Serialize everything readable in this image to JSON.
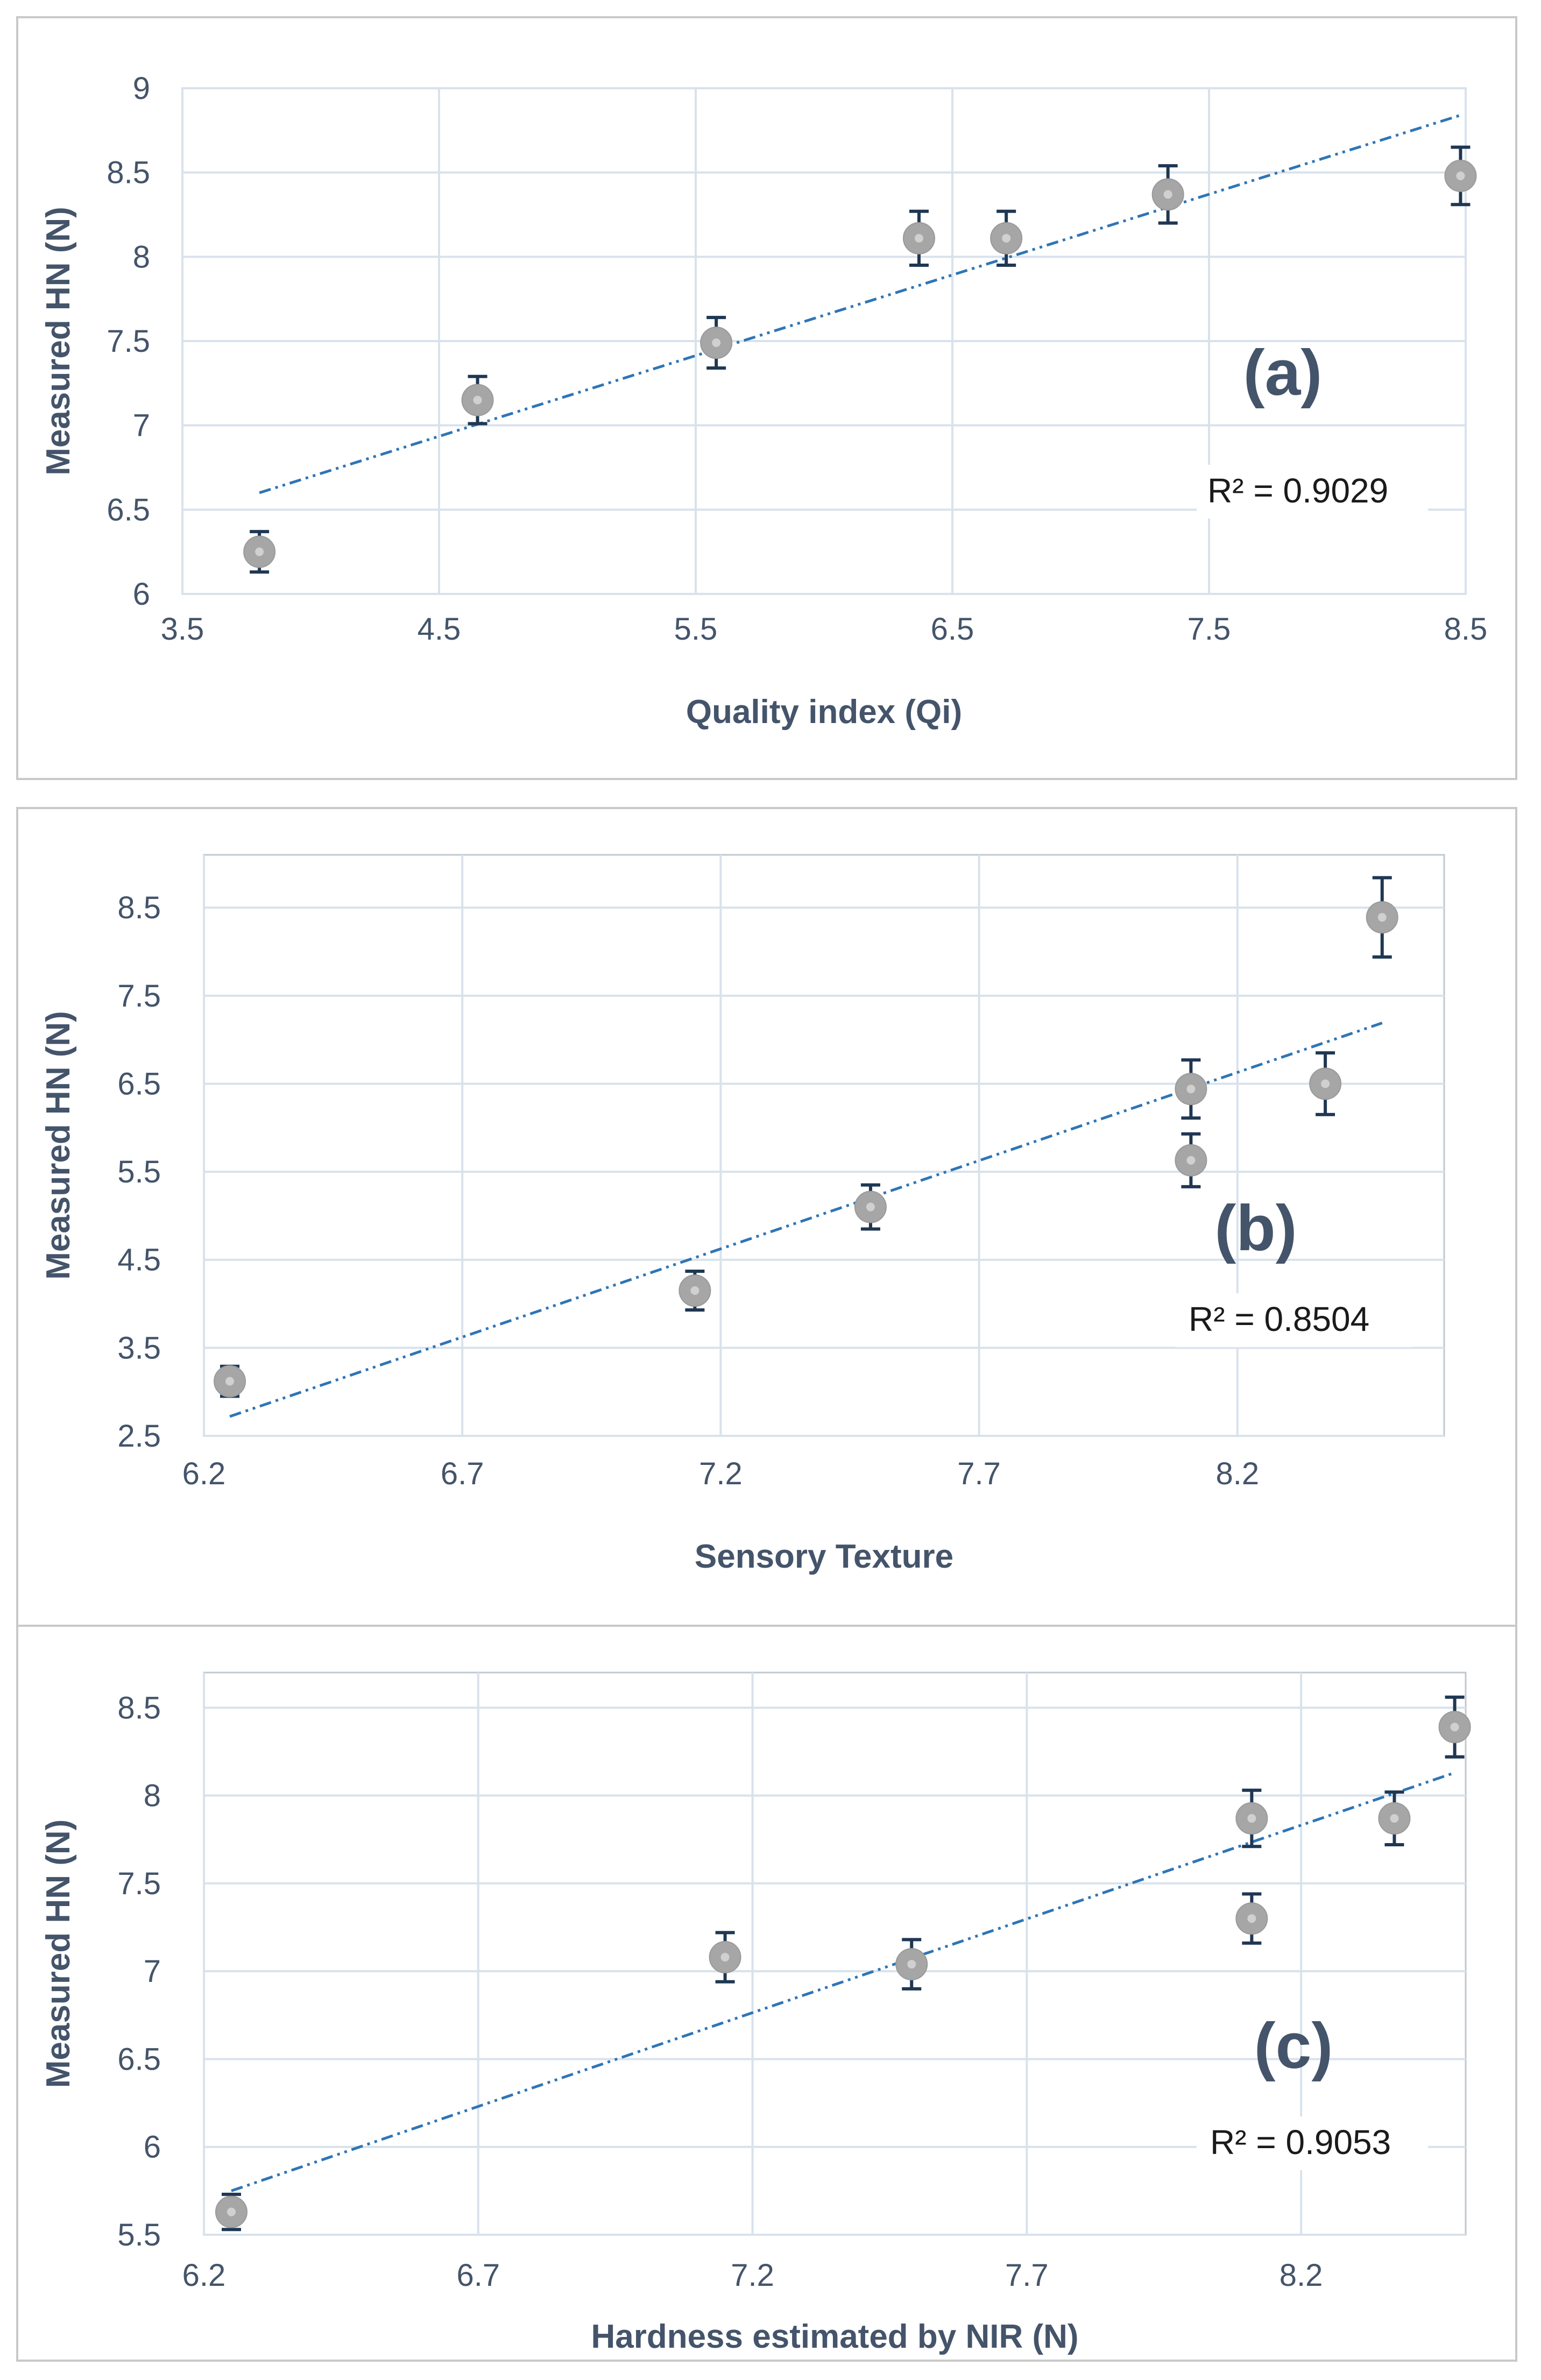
{
  "chart_data": [
    {
      "type": "scatter",
      "panel_label": "(a)",
      "xlabel": "Quality index (Qi)",
      "ylabel": "Measured HN (N)",
      "xlim": [
        3.5,
        8.5
      ],
      "ylim": [
        6,
        9
      ],
      "xticks": [
        3.5,
        4.5,
        5.5,
        6.5,
        7.5,
        8.5
      ],
      "yticks": [
        6,
        6.5,
        7,
        7.5,
        8,
        8.5,
        9
      ],
      "xtick_labels": [
        "3.5",
        "4.5",
        "5.5",
        "6.5",
        "7.5",
        "8.5"
      ],
      "ytick_labels": [
        "6",
        "6.5",
        "7",
        "7.5",
        "8",
        "8.5",
        "9"
      ],
      "x": [
        3.8,
        4.65,
        5.58,
        6.37,
        6.71,
        7.34,
        8.48
      ],
      "y": [
        6.25,
        7.15,
        7.49,
        8.11,
        8.11,
        8.37,
        8.48
      ],
      "error": [
        0.12,
        0.14,
        0.15,
        0.16,
        0.16,
        0.17,
        0.17
      ],
      "trendline": {
        "x": [
          3.8,
          8.48
        ],
        "y": [
          6.6,
          8.84
        ]
      },
      "r2_label": "R² = 0.9029",
      "grid": true
    },
    {
      "type": "scatter",
      "panel_label": "(b)",
      "xlabel": "Sensory Texture",
      "ylabel": "Measured HN (N)",
      "xlim": [
        6.2,
        8.6
      ],
      "ylim": [
        2.5,
        9.1
      ],
      "xticks": [
        6.2,
        6.7,
        7.2,
        7.7,
        8.2
      ],
      "yticks": [
        2.5,
        3.5,
        4.5,
        5.5,
        6.5,
        7.5,
        8.5
      ],
      "xtick_labels": [
        "6.2",
        "6.7",
        "7.2",
        "7.7",
        "8.2"
      ],
      "ytick_labels": [
        "2.5",
        "3.5",
        "4.5",
        "5.5",
        "6.5",
        "7.5",
        "8.5"
      ],
      "x": [
        6.25,
        7.15,
        7.49,
        8.11,
        8.11,
        8.37,
        8.48
      ],
      "y": [
        3.12,
        4.15,
        5.1,
        6.44,
        5.63,
        6.5,
        8.39
      ],
      "error": [
        0.17,
        0.22,
        0.25,
        0.33,
        0.3,
        0.35,
        0.45
      ],
      "trendline": {
        "x": [
          6.25,
          8.48
        ],
        "y": [
          2.72,
          7.19
        ]
      },
      "r2_label": "R² = 0.8504",
      "grid": true
    },
    {
      "type": "scatter",
      "panel_label": "(c)",
      "xlabel": "Hardness estimated by NIR (N)",
      "ylabel": "Measured HN (N)",
      "xlim": [
        6.2,
        8.5
      ],
      "ylim": [
        5.5,
        8.7
      ],
      "xticks": [
        6.2,
        6.7,
        7.2,
        7.7,
        8.2
      ],
      "yticks": [
        5.5,
        6,
        6.5,
        7,
        7.5,
        8,
        8.5
      ],
      "xtick_labels": [
        "6.2",
        "6.7",
        "7.2",
        "7.7",
        "8.2"
      ],
      "ytick_labels": [
        "5.5",
        "6",
        "6.5",
        "7",
        "7.5",
        "8",
        "8.5"
      ],
      "x": [
        6.25,
        7.15,
        7.49,
        8.11,
        8.11,
        8.37,
        8.48
      ],
      "y": [
        5.63,
        7.08,
        7.04,
        7.87,
        7.3,
        7.87,
        8.39
      ],
      "error": [
        0.1,
        0.14,
        0.14,
        0.16,
        0.14,
        0.15,
        0.17
      ],
      "trendline": {
        "x": [
          6.25,
          8.48
        ],
        "y": [
          5.75,
          8.13
        ]
      },
      "r2_label": "R² = 0.9053",
      "grid": true
    }
  ],
  "colors": {
    "marker_fill": "#a6a6a6",
    "marker_highlight": "#d0d0d0",
    "error_bar": "#1f3752",
    "trendline": "#2e75b6",
    "grid": "#d9e2ec",
    "plot_border": "#c0c8d0"
  }
}
